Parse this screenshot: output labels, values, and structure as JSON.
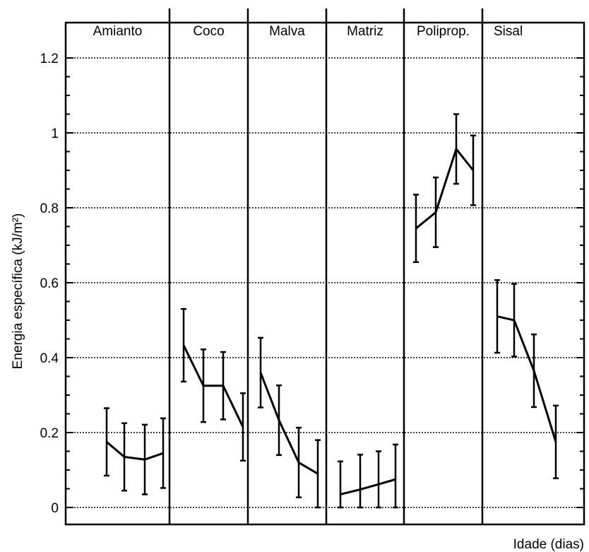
{
  "chart_data": {
    "type": "line",
    "xlabel": "Idade (dias)",
    "ylabel": "Energia específica (kJ/m²)",
    "ylim": [
      0,
      1.2
    ],
    "yticks": [
      "0",
      "0.2",
      "0.4",
      "0.6",
      "0.8",
      "1",
      "1.2"
    ],
    "grid": true,
    "panels": [
      {
        "name": "Amianto",
        "values": [
          0.175,
          0.135,
          0.128,
          0.145
        ],
        "errors": [
          0.09,
          0.09,
          0.093,
          0.093
        ]
      },
      {
        "name": "Coco",
        "values": [
          0.433,
          0.325,
          0.325,
          0.215
        ],
        "errors": [
          0.097,
          0.097,
          0.09,
          0.09
        ]
      },
      {
        "name": "Malva",
        "values": [
          0.36,
          0.233,
          0.12,
          0.09
        ],
        "errors": [
          0.093,
          0.093,
          0.093,
          0.09
        ]
      },
      {
        "name": "Matriz",
        "values": [
          0.035,
          0.048,
          0.062,
          0.075
        ],
        "errors": [
          0.088,
          0.093,
          0.088,
          0.093
        ]
      },
      {
        "name": "Poliprop.",
        "values": [
          0.745,
          0.788,
          0.957,
          0.9
        ],
        "errors": [
          0.09,
          0.093,
          0.093,
          0.093
        ]
      },
      {
        "name": "Sisal",
        "values": [
          0.51,
          0.5,
          0.365,
          0.175
        ],
        "errors": [
          0.097,
          0.097,
          0.097,
          0.097
        ]
      }
    ]
  }
}
